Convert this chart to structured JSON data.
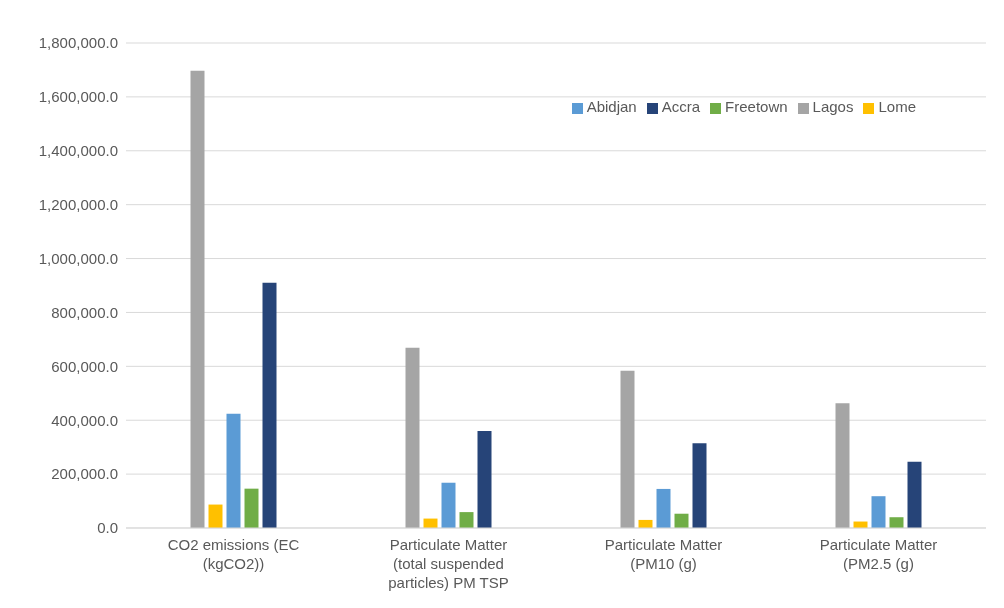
{
  "chart_data": {
    "type": "bar",
    "categories": [
      "CO2 emissions (EC (kgCO2))",
      "Particulate Matter (total suspended particles) PM TSP",
      "Particulate Matter (PM10 (g)",
      "Particulate Matter (PM2.5 (g)"
    ],
    "series": [
      {
        "name": "Lagos",
        "color": "#a5a5a5",
        "values": [
          1697000,
          669000,
          584000,
          463000
        ]
      },
      {
        "name": "Lome",
        "color": "#ffc000",
        "values": [
          87000,
          35000,
          30000,
          24000
        ]
      },
      {
        "name": "Abidjan",
        "color": "#5b9bd5",
        "values": [
          424000,
          168000,
          145000,
          118000
        ]
      },
      {
        "name": "Freetown",
        "color": "#70ad47",
        "values": [
          146000,
          59000,
          53000,
          40000
        ]
      },
      {
        "name": "Accra",
        "color": "#264478",
        "values": [
          910000,
          360000,
          315000,
          246000
        ]
      }
    ],
    "ylim": [
      0,
      1800000
    ],
    "yticks": [
      {
        "value": 0,
        "label": "0.0"
      },
      {
        "value": 200000,
        "label": "200,000.0"
      },
      {
        "value": 400000,
        "label": "400,000.0"
      },
      {
        "value": 600000,
        "label": "600,000.0"
      },
      {
        "value": 800000,
        "label": "800,000.0"
      },
      {
        "value": 1000000,
        "label": "1,000,000.0"
      },
      {
        "value": 1200000,
        "label": "1,200,000.0"
      },
      {
        "value": 1400000,
        "label": "1,400,000.0"
      },
      {
        "value": 1600000,
        "label": "1,600,000.0"
      },
      {
        "value": 1800000,
        "label": "1,800,000.0"
      }
    ],
    "grid": "y",
    "legend": "top right"
  }
}
